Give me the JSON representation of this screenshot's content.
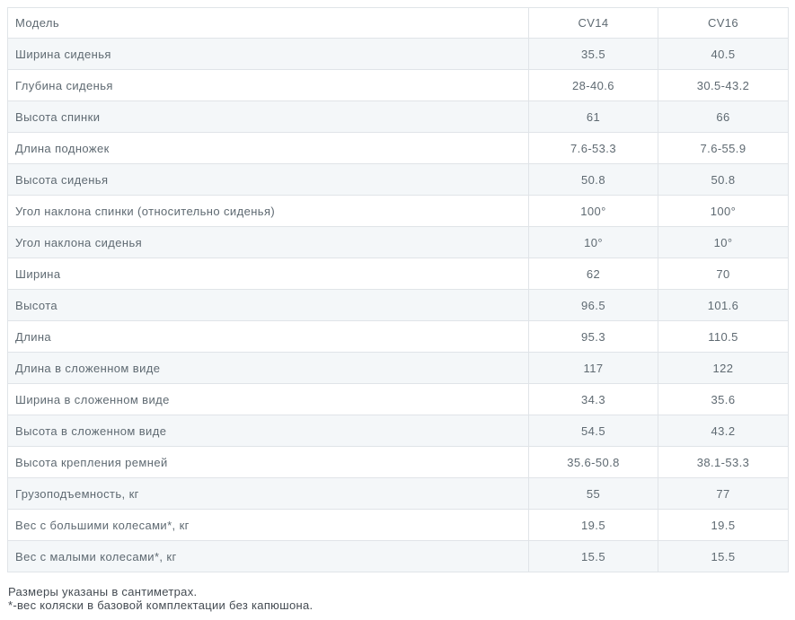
{
  "table": {
    "header": {
      "model_label": "Модель",
      "columns": [
        "CV14",
        "CV16"
      ]
    },
    "rows": [
      {
        "label": "Ширина сиденья",
        "cv14": "35.5",
        "cv16": "40.5"
      },
      {
        "label": "Глубина сиденья",
        "cv14": "28-40.6",
        "cv16": "30.5-43.2"
      },
      {
        "label": "Высота спинки",
        "cv14": "61",
        "cv16": "66"
      },
      {
        "label": "Длина подножек",
        "cv14": "7.6-53.3",
        "cv16": "7.6-55.9"
      },
      {
        "label": "Высота сиденья",
        "cv14": "50.8",
        "cv16": "50.8"
      },
      {
        "label": "Угол наклона спинки (относительно сиденья)",
        "cv14": "100°",
        "cv16": "100°"
      },
      {
        "label": "Угол наклона сиденья",
        "cv14": "10°",
        "cv16": "10°"
      },
      {
        "label": "Ширина",
        "cv14": "62",
        "cv16": "70"
      },
      {
        "label": "Высота",
        "cv14": "96.5",
        "cv16": "101.6"
      },
      {
        "label": "Длина",
        "cv14": "95.3",
        "cv16": "110.5"
      },
      {
        "label": "Длина в сложенном виде",
        "cv14": "117",
        "cv16": "122"
      },
      {
        "label": "Ширина в сложенном виде",
        "cv14": "34.3",
        "cv16": "35.6"
      },
      {
        "label": "Высота в сложенном виде",
        "cv14": "54.5",
        "cv16": "43.2"
      },
      {
        "label": "Высота крепления ремней",
        "cv14": "35.6-50.8",
        "cv16": "38.1-53.3"
      },
      {
        "label": "Грузоподъемность, кг",
        "cv14": "55",
        "cv16": "77"
      },
      {
        "label": "Вес с большими колесами*, кг",
        "cv14": "19.5",
        "cv16": "19.5"
      },
      {
        "label": "Вес с малыми колесами*, кг",
        "cv14": "15.5",
        "cv16": "15.5"
      }
    ]
  },
  "footnotes": [
    "Размеры указаны в сантиметрах.",
    "*-вес коляски в базовой комплектации без капюшона."
  ],
  "colors": {
    "border": "#e0e4e8",
    "stripe_row_bg": "#f4f7f9",
    "cell_text": "#5f6a72",
    "footnote_text": "#444b52"
  }
}
